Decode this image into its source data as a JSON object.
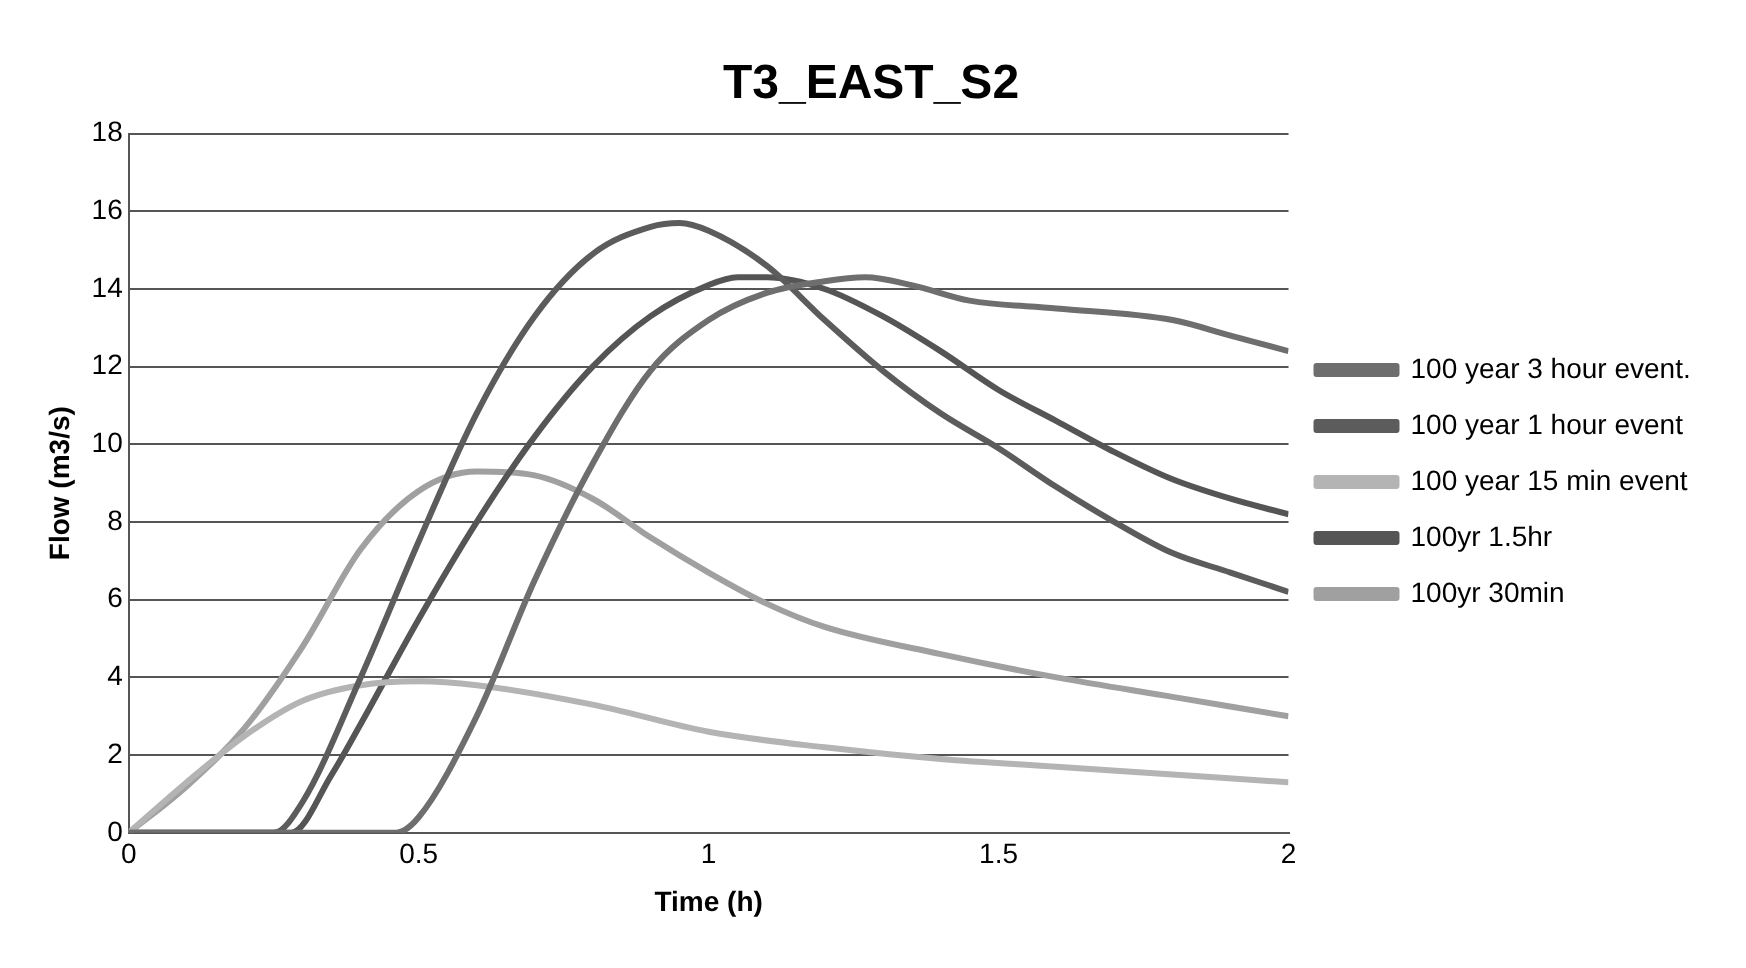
{
  "chart_data": {
    "type": "line",
    "title": "T3_EAST_S2",
    "xlabel": "Time (h)",
    "ylabel": "Flow (m3/s)",
    "xlim": [
      0,
      2
    ],
    "xticks": [
      0,
      0.5,
      1,
      1.5,
      2
    ],
    "ylim": [
      0,
      18
    ],
    "yticks": [
      0,
      2,
      4,
      6,
      8,
      10,
      12,
      14,
      16,
      18
    ],
    "grid": "y",
    "legend": "right",
    "marker": "none",
    "line_style": "solid",
    "series": [
      {
        "name": "100 year 3 hour event.",
        "color": "#6e6e6e",
        "x": [
          0,
          0.46,
          0.5,
          0.6,
          0.7,
          0.8,
          0.9,
          1.0,
          1.1,
          1.2,
          1.27,
          1.35,
          1.45,
          1.6,
          1.8,
          1.9,
          2.0
        ],
        "values": [
          0,
          0,
          0.4,
          3,
          6.5,
          9.5,
          11.9,
          13.2,
          13.9,
          14.2,
          14.3,
          14.1,
          13.7,
          13.5,
          13.2,
          12.8,
          12.4
        ]
      },
      {
        "name": "100 year 1 hour event",
        "color": "#5c5c5c",
        "x": [
          0,
          0.25,
          0.3,
          0.4,
          0.5,
          0.6,
          0.7,
          0.8,
          0.9,
          0.95,
          1.0,
          1.1,
          1.2,
          1.3,
          1.4,
          1.5,
          1.6,
          1.7,
          1.8,
          1.9,
          2.0
        ],
        "values": [
          0,
          0,
          0.8,
          4,
          7.5,
          10.8,
          13.3,
          14.9,
          15.6,
          15.7,
          15.5,
          14.6,
          13.2,
          11.9,
          10.8,
          9.9,
          8.9,
          8.0,
          7.2,
          6.7,
          6.2
        ]
      },
      {
        "name": "100 year 15 min event",
        "color": "#b4b4b4",
        "x": [
          0,
          0.1,
          0.2,
          0.3,
          0.4,
          0.5,
          0.6,
          0.8,
          1.0,
          1.2,
          1.4,
          1.6,
          1.8,
          2.0
        ],
        "values": [
          0,
          1.3,
          2.5,
          3.4,
          3.8,
          3.9,
          3.8,
          3.3,
          2.6,
          2.2,
          1.9,
          1.7,
          1.5,
          1.3
        ]
      },
      {
        "name": "100yr 1.5hr",
        "color": "#555555",
        "x": [
          0,
          0.28,
          0.35,
          0.4,
          0.5,
          0.6,
          0.7,
          0.8,
          0.9,
          1.0,
          1.05,
          1.1,
          1.2,
          1.3,
          1.4,
          1.5,
          1.6,
          1.7,
          1.8,
          1.9,
          2.0
        ],
        "values": [
          0,
          0,
          1.5,
          2.8,
          5.5,
          8,
          10.2,
          12,
          13.3,
          14.1,
          14.3,
          14.3,
          14.0,
          13.3,
          12.4,
          11.4,
          10.6,
          9.8,
          9.1,
          8.6,
          8.2
        ]
      },
      {
        "name": "100yr 30min",
        "color": "#a0a0a0",
        "x": [
          0,
          0.1,
          0.2,
          0.3,
          0.4,
          0.5,
          0.6,
          0.7,
          0.8,
          0.9,
          1.0,
          1.1,
          1.2,
          1.4,
          1.6,
          1.8,
          2.0
        ],
        "values": [
          0,
          1.2,
          2.7,
          4.8,
          7.3,
          8.8,
          9.3,
          9.2,
          8.6,
          7.6,
          6.7,
          5.9,
          5.3,
          4.6,
          4.0,
          3.5,
          3.0
        ]
      }
    ]
  }
}
